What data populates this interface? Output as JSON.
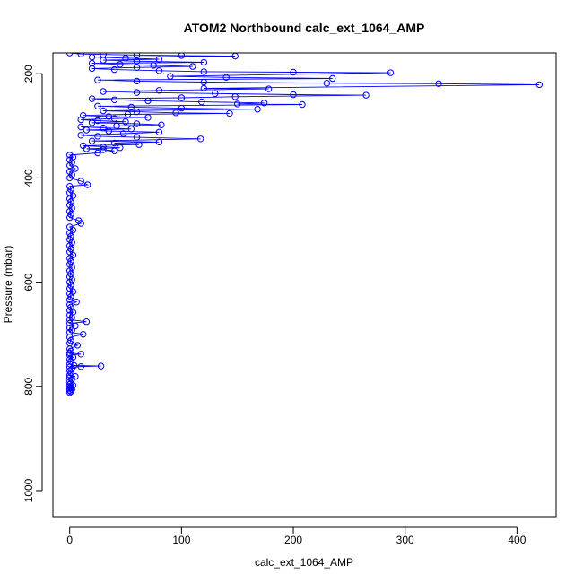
{
  "chart_data": {
    "type": "line",
    "title": "ATOM2 Northbound calc_ext_1064_AMP",
    "xlabel": "calc_ext_1064_AMP",
    "ylabel": "Pressure (mbar)",
    "xlim": [
      -15,
      435
    ],
    "ylim": [
      1050,
      160
    ],
    "y_reversed": true,
    "x_ticks": [
      0,
      100,
      200,
      300,
      400
    ],
    "y_ticks": [
      200,
      400,
      600,
      800,
      1000
    ],
    "grid": false,
    "legend": "none",
    "colors": {
      "series": "#0000ff",
      "axis": "#000000"
    },
    "series": [
      {
        "marker": "open-circle",
        "points": [
          [
            0,
            812
          ],
          [
            1,
            810
          ],
          [
            0,
            808
          ],
          [
            2,
            806
          ],
          [
            0,
            804
          ],
          [
            1,
            802
          ],
          [
            0,
            800
          ],
          [
            3,
            798
          ],
          [
            0,
            796
          ],
          [
            1,
            794
          ],
          [
            0,
            790
          ],
          [
            2,
            786
          ],
          [
            0,
            783
          ],
          [
            5,
            781
          ],
          [
            0,
            778
          ],
          [
            1,
            774
          ],
          [
            0,
            770
          ],
          [
            2,
            766
          ],
          [
            0,
            763
          ],
          [
            10,
            762
          ],
          [
            28,
            761
          ],
          [
            4,
            760
          ],
          [
            0,
            757
          ],
          [
            1,
            752
          ],
          [
            0,
            748
          ],
          [
            3,
            744
          ],
          [
            0,
            740
          ],
          [
            10,
            738
          ],
          [
            0,
            736
          ],
          [
            1,
            732
          ],
          [
            0,
            728
          ],
          [
            7,
            721
          ],
          [
            0,
            717
          ],
          [
            1,
            712
          ],
          [
            0,
            706
          ],
          [
            12,
            700
          ],
          [
            0,
            696
          ],
          [
            2,
            692
          ],
          [
            0,
            688
          ],
          [
            5,
            684
          ],
          [
            0,
            679
          ],
          [
            15,
            676
          ],
          [
            0,
            672
          ],
          [
            2,
            668
          ],
          [
            0,
            663
          ],
          [
            3,
            658
          ],
          [
            0,
            654
          ],
          [
            1,
            648
          ],
          [
            0,
            643
          ],
          [
            6,
            638
          ],
          [
            0,
            634
          ],
          [
            1,
            628
          ],
          [
            0,
            622
          ],
          [
            3,
            618
          ],
          [
            0,
            612
          ],
          [
            1,
            606
          ],
          [
            0,
            600
          ],
          [
            2,
            595
          ],
          [
            0,
            590
          ],
          [
            1,
            584
          ],
          [
            0,
            578
          ],
          [
            2,
            572
          ],
          [
            0,
            566
          ],
          [
            1,
            560
          ],
          [
            0,
            554
          ],
          [
            3,
            548
          ],
          [
            0,
            542
          ],
          [
            1,
            536
          ],
          [
            0,
            530
          ],
          [
            2,
            524
          ],
          [
            0,
            518
          ],
          [
            1,
            512
          ],
          [
            0,
            506
          ],
          [
            3,
            500
          ],
          [
            0,
            494
          ],
          [
            10,
            487
          ],
          [
            8,
            482
          ],
          [
            0,
            476
          ],
          [
            1,
            470
          ],
          [
            0,
            464
          ],
          [
            2,
            458
          ],
          [
            0,
            452
          ],
          [
            1,
            446
          ],
          [
            0,
            440
          ],
          [
            3,
            434
          ],
          [
            0,
            428
          ],
          [
            1,
            422
          ],
          [
            0,
            416
          ],
          [
            16,
            413
          ],
          [
            10,
            406
          ],
          [
            0,
            400
          ],
          [
            2,
            394
          ],
          [
            0,
            388
          ],
          [
            5,
            382
          ],
          [
            0,
            376
          ],
          [
            2,
            370
          ],
          [
            0,
            365
          ],
          [
            3,
            360
          ],
          [
            0,
            356
          ],
          [
            25,
            352
          ],
          [
            40,
            348
          ],
          [
            30,
            346
          ],
          [
            15,
            344
          ],
          [
            45,
            342
          ],
          [
            30,
            340
          ],
          [
            12,
            338
          ],
          [
            62,
            336
          ],
          [
            40,
            333
          ],
          [
            80,
            331
          ],
          [
            20,
            329
          ],
          [
            117,
            325
          ],
          [
            60,
            322
          ],
          [
            25,
            320
          ],
          [
            10,
            318
          ],
          [
            48,
            315
          ],
          [
            80,
            312
          ],
          [
            35,
            310
          ],
          [
            15,
            308
          ],
          [
            55,
            306
          ],
          [
            30,
            304
          ],
          [
            10,
            302
          ],
          [
            42,
            300
          ],
          [
            82,
            298
          ],
          [
            60,
            296
          ],
          [
            20,
            294
          ],
          [
            50,
            292
          ],
          [
            25,
            290
          ],
          [
            10,
            288
          ],
          [
            40,
            286
          ],
          [
            70,
            284
          ],
          [
            35,
            282
          ],
          [
            12,
            280
          ],
          [
            52,
            278
          ],
          [
            143,
            276
          ],
          [
            95,
            275
          ],
          [
            60,
            273
          ],
          [
            30,
            271
          ],
          [
            168,
            268
          ],
          [
            100,
            266
          ],
          [
            55,
            264
          ],
          [
            25,
            262
          ],
          [
            208,
            259
          ],
          [
            150,
            258
          ],
          [
            174,
            256
          ],
          [
            118,
            254
          ],
          [
            70,
            252
          ],
          [
            40,
            250
          ],
          [
            20,
            248
          ],
          [
            100,
            246
          ],
          [
            148,
            244
          ],
          [
            265,
            241
          ],
          [
            200,
            240
          ],
          [
            130,
            238
          ],
          [
            60,
            236
          ],
          [
            30,
            234
          ],
          [
            80,
            232
          ],
          [
            178,
            229
          ],
          [
            120,
            228
          ],
          [
            420,
            221
          ],
          [
            330,
            219
          ],
          [
            230,
            218
          ],
          [
            120,
            216
          ],
          [
            60,
            214
          ],
          [
            25,
            212
          ],
          [
            235,
            209
          ],
          [
            140,
            207
          ],
          [
            90,
            205
          ],
          [
            287,
            198
          ],
          [
            200,
            197
          ],
          [
            120,
            196
          ],
          [
            80,
            194
          ],
          [
            40,
            192
          ],
          [
            20,
            190
          ],
          [
            60,
            188
          ],
          [
            110,
            186
          ],
          [
            75,
            184
          ],
          [
            45,
            182
          ],
          [
            20,
            180
          ],
          [
            120,
            178
          ],
          [
            60,
            176
          ],
          [
            30,
            174
          ],
          [
            80,
            172
          ],
          [
            50,
            170
          ],
          [
            20,
            168
          ],
          [
            148,
            166
          ],
          [
            100,
            165
          ],
          [
            60,
            164
          ],
          [
            30,
            163
          ],
          [
            10,
            162
          ],
          [
            0,
            160
          ]
        ]
      }
    ]
  }
}
